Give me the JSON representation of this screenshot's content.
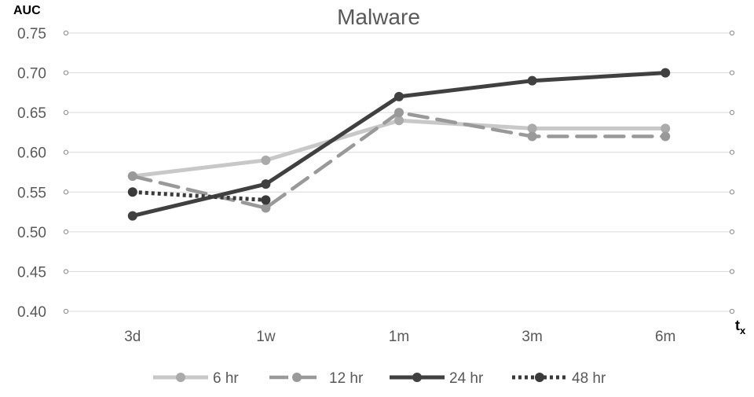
{
  "chart_data": {
    "type": "line",
    "title": "Malware",
    "ylabel": "AUC",
    "xlabel": "t",
    "xlabel_sub": "x",
    "categories": [
      "3d",
      "1w",
      "1m",
      "3m",
      "6m"
    ],
    "ylim": [
      0.4,
      0.75
    ],
    "yticks": [
      "0.40",
      "0.45",
      "0.50",
      "0.55",
      "0.60",
      "0.65",
      "0.70",
      "0.75"
    ],
    "grid": "horizontal",
    "legend_position": "bottom",
    "series": [
      {
        "name": "6 hr",
        "values": [
          0.57,
          0.59,
          0.64,
          0.63,
          0.63
        ],
        "color": "#c8c8c8",
        "marker": "#aaaaaa",
        "dash": "solid"
      },
      {
        "name": "12 hr",
        "values": [
          0.57,
          0.53,
          0.65,
          0.62,
          0.62
        ],
        "color": "#999999",
        "marker": "#999999",
        "dash": "dash"
      },
      {
        "name": "24 hr",
        "values": [
          0.52,
          0.56,
          0.67,
          0.69,
          0.7
        ],
        "color": "#404040",
        "marker": "#404040",
        "dash": "solid"
      },
      {
        "name": "48 hr",
        "values": [
          0.55,
          0.54,
          null,
          null,
          null
        ],
        "color": "#3a3a3a",
        "marker": "#3a3a3a",
        "dash": "dot"
      }
    ]
  }
}
